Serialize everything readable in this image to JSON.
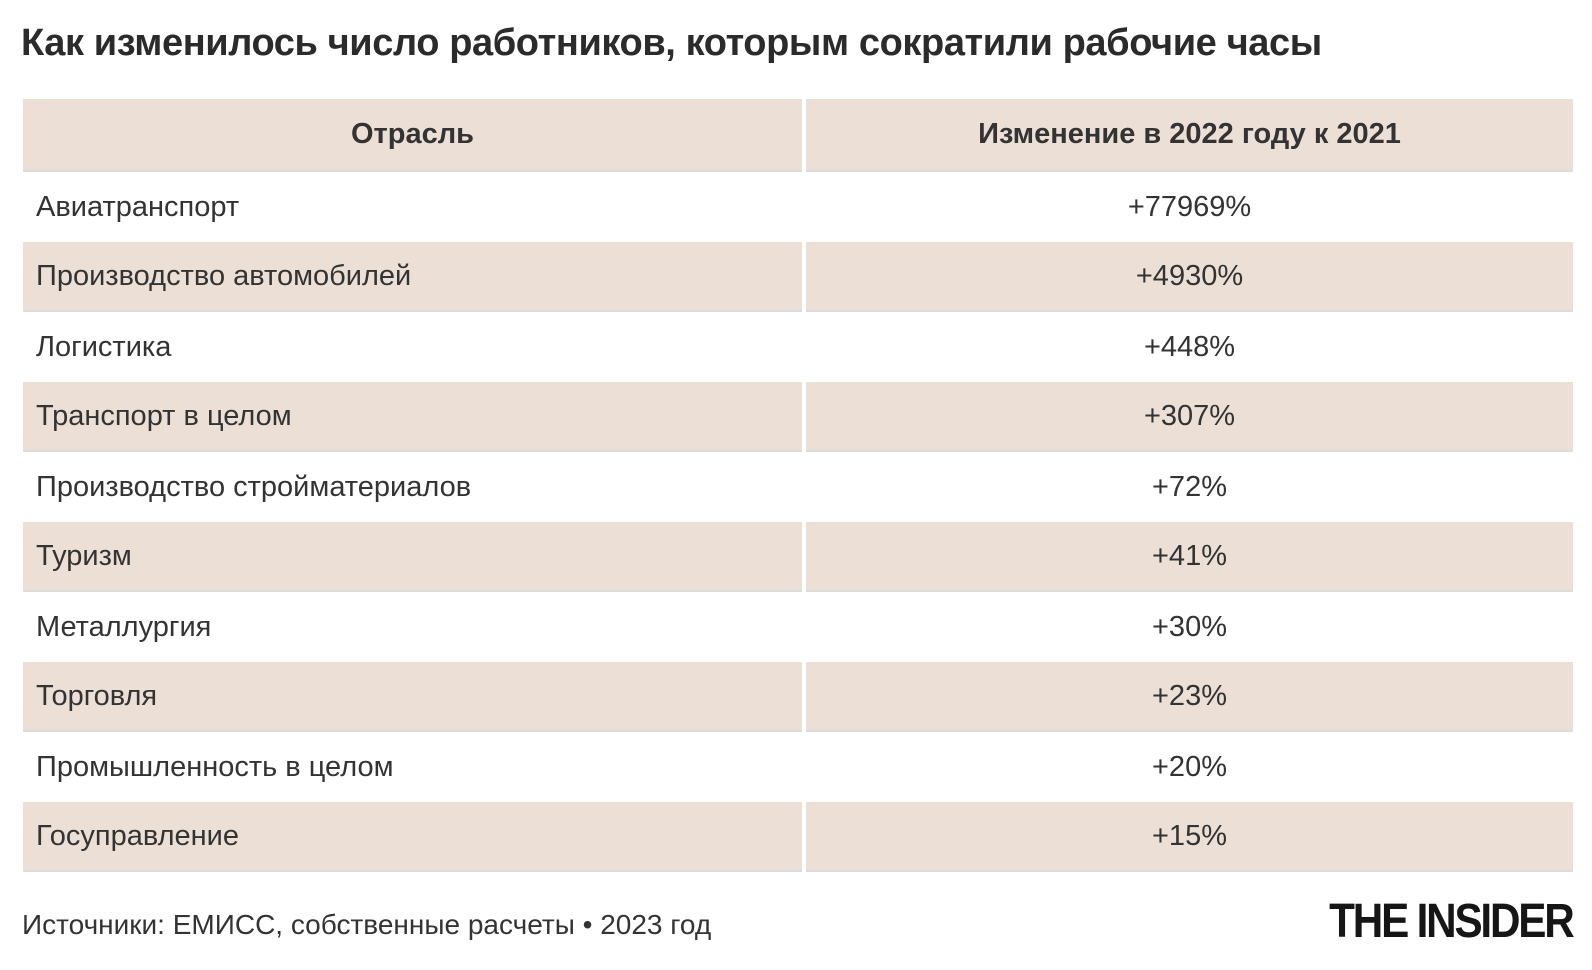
{
  "title": "Как изменилось число работников, которым сократили рабочие часы",
  "table": {
    "columns": [
      {
        "label": "Отрасль"
      },
      {
        "label": "Изменение в 2022 году к 2021"
      }
    ],
    "rows": [
      {
        "industry": "Авиатранспорт",
        "change": "+77969%"
      },
      {
        "industry": "Производство автомобилей",
        "change": "+4930%"
      },
      {
        "industry": "Логистика",
        "change": "+448%"
      },
      {
        "industry": "Транспорт в целом",
        "change": "+307%"
      },
      {
        "industry": "Производство стройматериалов",
        "change": "+72%"
      },
      {
        "industry": "Туризм",
        "change": "+41%"
      },
      {
        "industry": "Металлургия",
        "change": "+30%"
      },
      {
        "industry": "Торговля",
        "change": "+23%"
      },
      {
        "industry": "Промышленность в целом",
        "change": "+20%"
      },
      {
        "industry": "Госуправление",
        "change": "+15%"
      }
    ]
  },
  "footer": {
    "source": "Источники: ЕМИСС, собственные расчеты • 2023 год",
    "logo": "THE INSIDER"
  },
  "colors": {
    "background": "#ffffff",
    "beige": "#ece0d6",
    "row_border": "#dcdcdc",
    "text": "#333333",
    "title": "#2b2b2b",
    "logo": "#161616"
  },
  "chart_data": {
    "type": "table",
    "title": "Как изменилось число работников, которым сократили рабочие часы",
    "columns": [
      "Отрасль",
      "Изменение в 2022 году к 2021"
    ],
    "categories": [
      "Авиатранспорт",
      "Производство автомобилей",
      "Логистика",
      "Транспорт в целом",
      "Производство стройматериалов",
      "Туризм",
      "Металлургия",
      "Торговля",
      "Промышленность в целом",
      "Госуправление"
    ],
    "values_percent": [
      77969,
      4930,
      448,
      307,
      72,
      41,
      30,
      23,
      20,
      15
    ],
    "values_display": [
      "+77969%",
      "+4930%",
      "+448%",
      "+307%",
      "+72%",
      "+41%",
      "+30%",
      "+23%",
      "+20%",
      "+15%"
    ],
    "source": "Источники: ЕМИСС, собственные расчеты • 2023 год",
    "layout": "zebra-striped two-column table, beige header, values column centered"
  }
}
